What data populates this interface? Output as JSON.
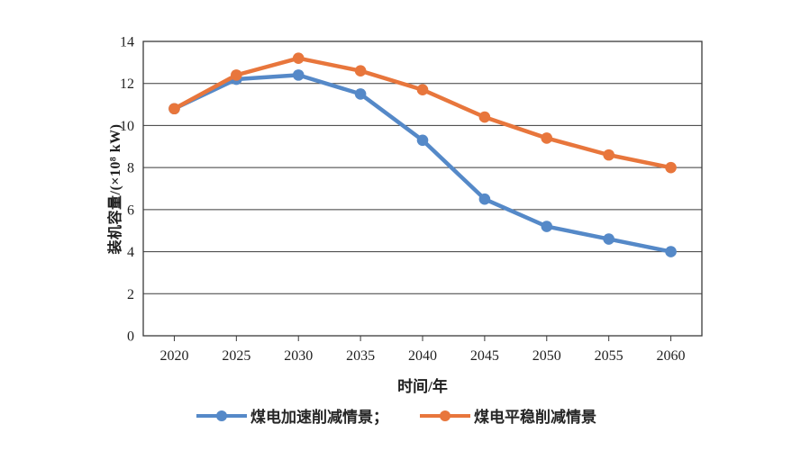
{
  "chart_data": {
    "type": "line",
    "title": "",
    "categories": [
      "2020",
      "2025",
      "2030",
      "2035",
      "2040",
      "2045",
      "2050",
      "2055",
      "2060"
    ],
    "series": [
      {
        "name": "煤电加速削减情景",
        "legend_label": "煤电加速削减情景；",
        "color": "#5589C8",
        "values": [
          10.8,
          12.2,
          12.4,
          11.5,
          9.3,
          6.5,
          5.2,
          4.6,
          4.0
        ]
      },
      {
        "name": "煤电平稳削减情景",
        "legend_label": "煤电平稳削减情景",
        "color": "#E8763C",
        "values": [
          10.8,
          12.4,
          13.2,
          12.6,
          11.7,
          10.4,
          9.4,
          8.6,
          8.0
        ]
      }
    ],
    "xlabel": "时间/年",
    "ylabel": "装机容量/(×10⁸ kW)",
    "ylim": [
      0,
      14
    ],
    "ytick_step": 2,
    "grid": true,
    "legend_position": "bottom-center",
    "axis_color": "#3A3A3A",
    "background_color": "#FFFFFF"
  }
}
